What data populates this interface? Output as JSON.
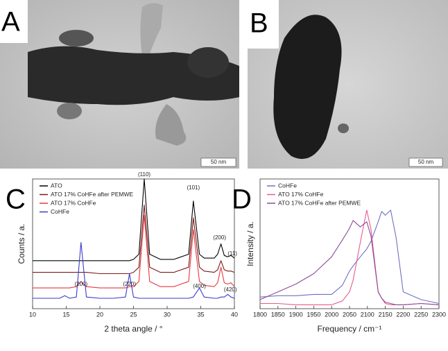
{
  "panels": [
    {
      "label": "A",
      "scale_bar": "50 nm"
    },
    {
      "label": "B",
      "scale_bar": "50 nm"
    }
  ],
  "chart_data": [
    {
      "type": "line",
      "panel_label": "C",
      "x_label": "2 theta angle / °",
      "y_label": "Counts / a.",
      "x": [
        10,
        12,
        14,
        14.8,
        15.5,
        16.5,
        17.2,
        18,
        20,
        22,
        23.8,
        24.4,
        25,
        25.8,
        26.6,
        27.4,
        29,
        31,
        33.2,
        33.9,
        34.8,
        35.5,
        37,
        37.5,
        38,
        38.5,
        39,
        39.5,
        40
      ],
      "series": [
        {
          "name": "ATO",
          "color": "#000000",
          "values": [
            37,
            37,
            37,
            37,
            37,
            37,
            37,
            37,
            37,
            37,
            37,
            37,
            38,
            42,
            100,
            42,
            38,
            38,
            42,
            83,
            42,
            39,
            39,
            42,
            50,
            41,
            40,
            41,
            39
          ]
        },
        {
          "name": "ATO 17% CoHFe after PEMWE",
          "color": "#7a1a1a",
          "values": [
            28,
            28,
            28,
            28,
            28,
            28,
            28,
            28,
            27,
            27,
            27,
            27,
            28,
            32,
            80,
            32,
            28,
            28,
            32,
            70,
            32,
            29,
            28,
            30,
            37,
            30,
            29,
            29,
            28
          ]
        },
        {
          "name": "ATO 17% CoHFe",
          "color": "#e8383d",
          "values": [
            16,
            16,
            16,
            16,
            16,
            17,
            21,
            17,
            16,
            16,
            16,
            17,
            17,
            21,
            72,
            21,
            17,
            17,
            21,
            61,
            21,
            18,
            17,
            20,
            32,
            20,
            19,
            20,
            17
          ]
        },
        {
          "name": "CoHFe",
          "color": "#3a3acc",
          "values": [
            8,
            8,
            8,
            10,
            8,
            9,
            51,
            9,
            8,
            8,
            9,
            27,
            9,
            8,
            8,
            8,
            8,
            8,
            8,
            9,
            16,
            9,
            8,
            8,
            9,
            9,
            11,
            9,
            8
          ]
        }
      ],
      "annotations": [
        "(110)",
        "(101)",
        "(200)",
        "(11)",
        "(200)",
        "(220)",
        "(400)",
        "(420)"
      ],
      "xlim": [
        10,
        40
      ],
      "xticks": [
        10,
        15,
        20,
        25,
        30,
        35,
        40
      ],
      "ylim": [
        0,
        100
      ],
      "legend": "upper left"
    },
    {
      "type": "line",
      "panel_label": "D",
      "x_label": "Frequency / cm⁻¹",
      "y_label": "Intensity / a.",
      "x": [
        1800,
        1850,
        1900,
        1950,
        2000,
        2030,
        2050,
        2060,
        2080,
        2098,
        2110,
        2130,
        2140,
        2150,
        2165,
        2180,
        2200,
        2250,
        2300
      ],
      "series": [
        {
          "name": "CoHFe",
          "color": "#7070c0",
          "values": [
            9,
            10,
            10,
            11,
            11,
            18,
            29,
            33,
            40,
            46,
            52,
            67,
            75,
            72,
            76,
            55,
            13,
            7,
            4
          ]
        },
        {
          "name": "ATO 17% CoHFe",
          "color": "#e85b8a",
          "values": [
            4,
            4,
            3,
            3,
            3,
            6,
            13,
            22,
            51,
            76,
            61,
            13,
            8,
            4,
            3,
            3,
            3,
            4,
            3
          ]
        },
        {
          "name": "ATO 17% CoHFe after PEMWE",
          "color": "#8a4a9a",
          "values": [
            7,
            13,
            19,
            27,
            40,
            53,
            62,
            68,
            63,
            67,
            56,
            13,
            8,
            5,
            4,
            3,
            3,
            4,
            3
          ]
        }
      ],
      "xlim": [
        1800,
        2300
      ],
      "xticks": [
        1800,
        1850,
        1900,
        1950,
        2000,
        2050,
        2100,
        2150,
        2200,
        2250,
        2300
      ],
      "ylim": [
        0,
        100
      ],
      "legend": "upper left"
    }
  ]
}
